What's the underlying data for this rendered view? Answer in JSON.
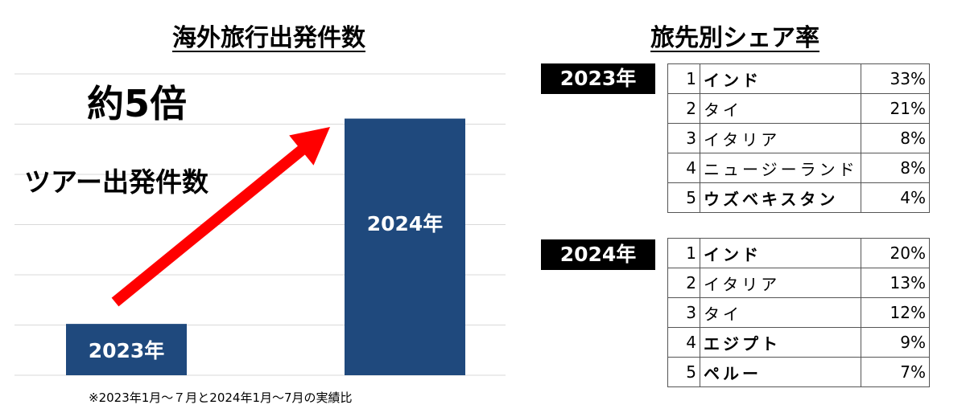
{
  "chart_data": {
    "type": "bar",
    "title": "海外旅行出発件数",
    "categories": [
      "2023年",
      "2024年"
    ],
    "values": [
      1,
      5
    ],
    "ylim": [
      0,
      5.87
    ],
    "grid": true,
    "multiplier_label": "約5倍",
    "annotation": "ツアー出発件数",
    "bar_color": "#1f497d",
    "arrow_color": "#ff0000",
    "footnote": "※2023年1月～７月と2024年1月～7月の実績比"
  },
  "share": {
    "title": "旅先別シェア率",
    "tables": [
      {
        "year": "2023年",
        "rows": [
          {
            "rank": "1",
            "dest": "インド",
            "share": "33%",
            "bold": true
          },
          {
            "rank": "2",
            "dest": "タイ",
            "share": "21%",
            "bold": false
          },
          {
            "rank": "3",
            "dest": "イタリア",
            "share": "8%",
            "bold": false
          },
          {
            "rank": "4",
            "dest": "ニュージーランド",
            "share": "8%",
            "bold": false
          },
          {
            "rank": "5",
            "dest": "ウズベキスタン",
            "share": "4%",
            "bold": true
          }
        ]
      },
      {
        "year": "2024年",
        "rows": [
          {
            "rank": "1",
            "dest": "インド",
            "share": "20%",
            "bold": true
          },
          {
            "rank": "2",
            "dest": "イタリア",
            "share": "13%",
            "bold": false
          },
          {
            "rank": "3",
            "dest": "タイ",
            "share": "12%",
            "bold": false
          },
          {
            "rank": "4",
            "dest": "エジプト",
            "share": "9%",
            "bold": true
          },
          {
            "rank": "5",
            "dest": "ペルー",
            "share": "7%",
            "bold": true
          }
        ]
      }
    ]
  }
}
